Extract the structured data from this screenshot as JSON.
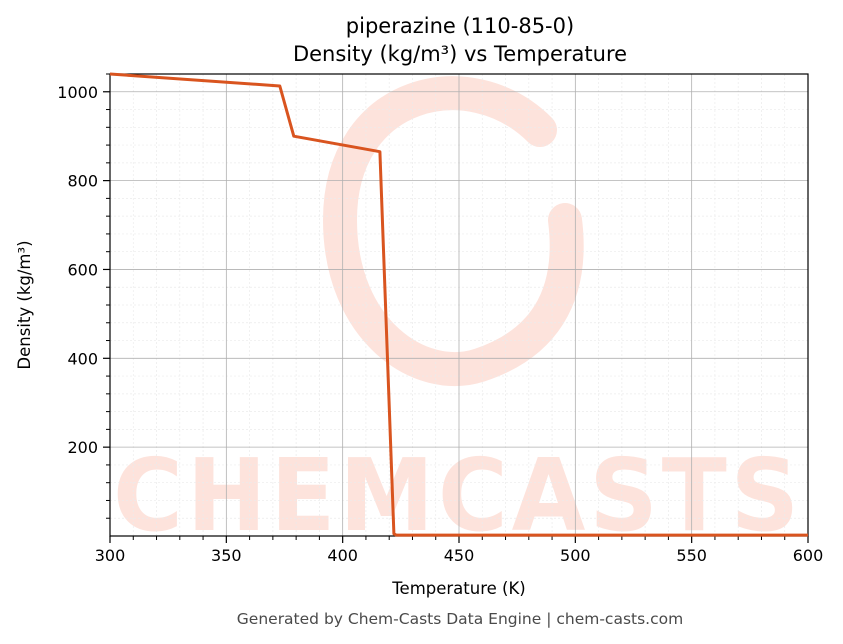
{
  "chart_data": {
    "type": "line",
    "title": "piperazine (110-85-0)",
    "subtitle": "Density (kg/m³) vs Temperature",
    "xlabel": "Temperature (K)",
    "ylabel": "Density (kg/m³)",
    "xlim": [
      300,
      600
    ],
    "ylim": [
      0,
      1040
    ],
    "x_ticks": [
      300,
      350,
      400,
      450,
      500,
      550,
      600
    ],
    "y_ticks": [
      200,
      400,
      600,
      800,
      1000
    ],
    "grid": true,
    "legend": "none",
    "line_color": "#d9541f",
    "series": [
      {
        "x": [
          300,
          373,
          379,
          416,
          422,
          423,
          600
        ],
        "y": [
          1040,
          1013,
          900,
          865,
          5,
          2,
          2
        ]
      }
    ]
  },
  "watermark": {
    "text": "CHEMCASTS",
    "color": "#fde3dc"
  },
  "footer": {
    "text": "Generated by Chem-Casts Data Engine | chem-casts.com"
  }
}
